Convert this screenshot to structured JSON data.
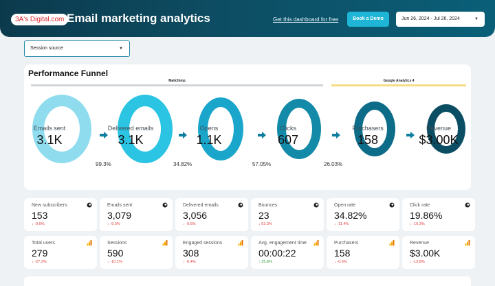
{
  "header": {
    "logo_text": "3A's Digital.com",
    "title": "Email marketing analytics",
    "free_link": "Get this dashboard for free",
    "demo_button": "Book a Demo",
    "date_range": "Jun 26, 2024 - Jul 26, 2024"
  },
  "filters": {
    "session_source": "Session source"
  },
  "funnel": {
    "title": "Performance Funnel",
    "sources": [
      "Mailchimp",
      "Google Analytics 4"
    ],
    "stages": [
      {
        "label": "Emails sent",
        "value": "3.1K",
        "color": "#8fdcef"
      },
      {
        "label": "Delivered emails",
        "value": "3.1K",
        "color": "#2cc4e3"
      },
      {
        "label": "Opens",
        "value": "1.1K",
        "color": "#1aa6cb"
      },
      {
        "label": "Clicks",
        "value": "607",
        "color": "#138aa8"
      },
      {
        "label": "Purchasers",
        "value": "158",
        "color": "#0d6c88"
      },
      {
        "label": "Revenue",
        "value": "$3.00K",
        "color": "#0b4e63"
      }
    ],
    "conversion_rates": [
      "99.3%",
      "34.82%",
      "57.05%",
      "26.03%"
    ]
  },
  "kpis": [
    {
      "label": "New subscribers",
      "value": "153",
      "delta": "-9.5%",
      "trend": "down",
      "source_icon": "mailchimp-icon"
    },
    {
      "label": "Emails sent",
      "value": "3,079",
      "delta": "-9.3%",
      "trend": "down",
      "source_icon": "mailchimp-icon"
    },
    {
      "label": "Delivered emails",
      "value": "3,056",
      "delta": "-9.5%",
      "trend": "down",
      "source_icon": "mailchimp-icon"
    },
    {
      "label": "Bounces",
      "value": "23",
      "delta": "53.3%",
      "trend": "down",
      "source_icon": "mailchimp-icon"
    },
    {
      "label": "Open rate",
      "value": "34.82%",
      "delta": "-11.4%",
      "trend": "down",
      "source_icon": "mailchimp-icon"
    },
    {
      "label": "Click rate",
      "value": "19.86%",
      "delta": "-10.3%",
      "trend": "down",
      "source_icon": "mailchimp-icon"
    },
    {
      "label": "Total users",
      "value": "279",
      "delta": "-27.3%",
      "trend": "down",
      "source_icon": "analytics-icon"
    },
    {
      "label": "Sessions",
      "value": "590",
      "delta": "-10.1%",
      "trend": "down",
      "source_icon": "analytics-icon"
    },
    {
      "label": "Engaged sessions",
      "value": "308",
      "delta": "-6.4%",
      "trend": "down",
      "source_icon": "analytics-icon"
    },
    {
      "label": "Avg. engagement time",
      "value": "00:00:22",
      "delta": "25.8%",
      "trend": "up",
      "source_icon": "analytics-icon"
    },
    {
      "label": "Purchasers",
      "value": "158",
      "delta": "-0.6%",
      "trend": "down",
      "source_icon": "analytics-icon"
    },
    {
      "label": "Revenue",
      "value": "$3.00K",
      "delta": "-13.8%",
      "trend": "down",
      "source_icon": "analytics-icon"
    }
  ]
}
